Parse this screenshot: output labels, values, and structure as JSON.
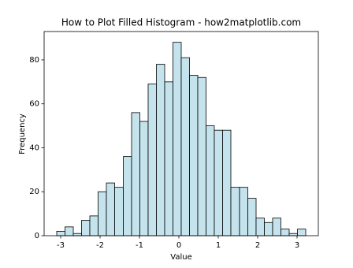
{
  "chart_data": {
    "type": "histogram",
    "title": "How to Plot Filled Histogram - how2matplotlib.com",
    "x_label": "Value",
    "y_label": "Frequency",
    "bins": [
      -3.1,
      -2.89,
      -2.68,
      -2.47,
      -2.26,
      -2.05,
      -1.84,
      -1.63,
      -1.41,
      -1.2,
      -0.99,
      -0.78,
      -0.57,
      -0.36,
      -0.15,
      0.06,
      0.27,
      0.48,
      0.69,
      0.9,
      1.11,
      1.32,
      1.54,
      1.75,
      1.96,
      2.17,
      2.38,
      2.59,
      2.8,
      3.01,
      3.22
    ],
    "values": [
      2,
      4,
      1,
      7,
      9,
      20,
      24,
      22,
      36,
      56,
      52,
      69,
      78,
      70,
      88,
      81,
      73,
      72,
      50,
      48,
      48,
      22,
      22,
      17,
      8,
      6,
      8,
      3,
      1,
      3
    ],
    "color": "#c5e3ec",
    "edgecolor": "#000000",
    "xlim": [
      -3.42,
      3.54
    ],
    "xticks": [
      -3,
      -2,
      -1,
      0,
      1,
      2,
      3
    ],
    "ylim": [
      0,
      92.9
    ],
    "yticks": [
      0,
      20,
      40,
      60,
      80
    ]
  }
}
